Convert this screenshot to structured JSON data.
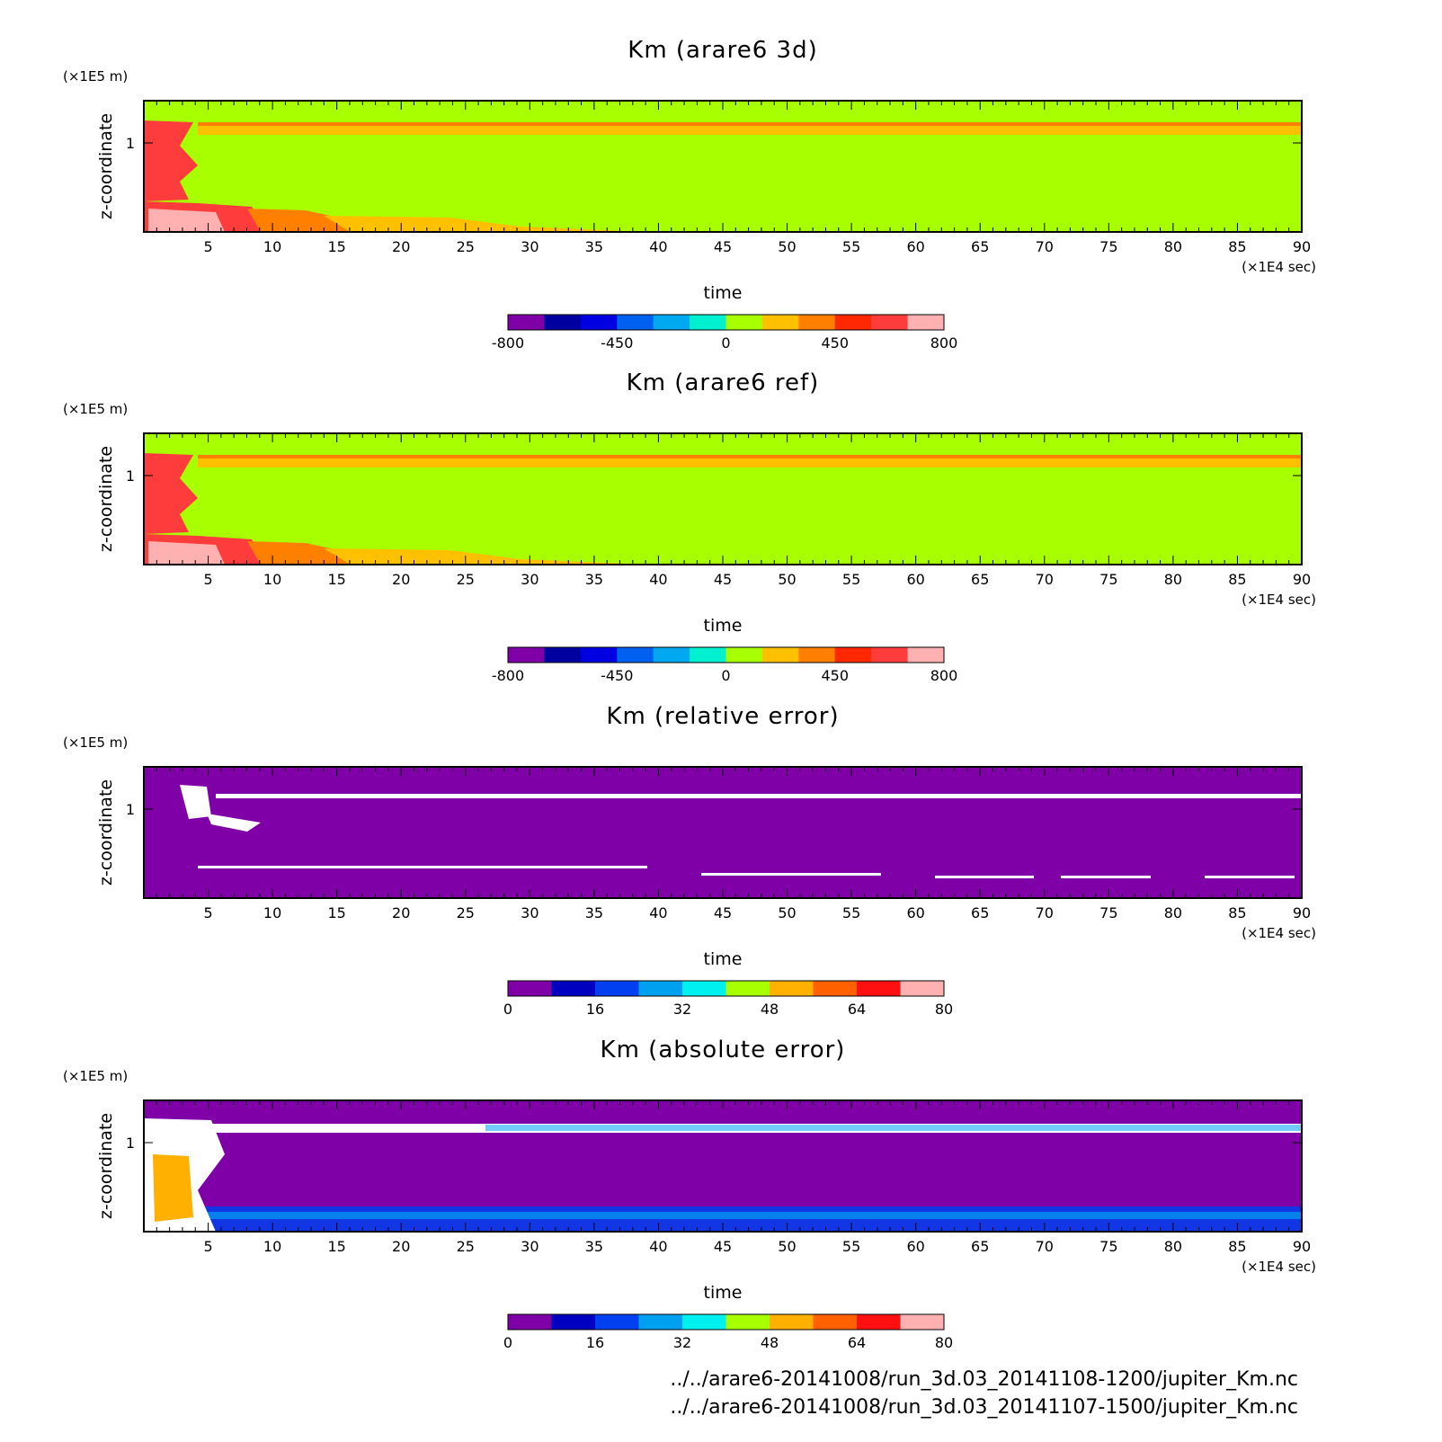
{
  "chart_data": [
    {
      "type": "heatmap",
      "title": "Km (arare6 3d)",
      "xlabel": "time",
      "x_unit": "(×1E4 sec)",
      "y_unit": "(×1E5 m)",
      "ylabel": "z-coordinate",
      "x_ticks": [
        "5",
        "10",
        "15",
        "20",
        "25",
        "30",
        "35",
        "40",
        "45",
        "50",
        "55",
        "60",
        "65",
        "70",
        "75",
        "80",
        "85",
        "90"
      ],
      "y_ticks": [
        "1"
      ],
      "xlim": [
        0,
        90
      ],
      "colorbar": {
        "labels": [
          "-800",
          "-450",
          "0",
          "450",
          "800"
        ],
        "colors": [
          "#8000a8",
          "#0000a0",
          "#0000e0",
          "#0060f0",
          "#00a8f0",
          "#00f0d0",
          "#a8ff00",
          "#ffc000",
          "#ff8000",
          "#ff2800",
          "#ff3c3c",
          "#ffb0b0"
        ]
      }
    },
    {
      "type": "heatmap",
      "title": "Km (arare6 ref)",
      "xlabel": "time",
      "x_unit": "(×1E4 sec)",
      "y_unit": "(×1E5 m)",
      "ylabel": "z-coordinate",
      "x_ticks": [
        "5",
        "10",
        "15",
        "20",
        "25",
        "30",
        "35",
        "40",
        "45",
        "50",
        "55",
        "60",
        "65",
        "70",
        "75",
        "80",
        "85",
        "90"
      ],
      "y_ticks": [
        "1"
      ],
      "xlim": [
        0,
        90
      ],
      "colorbar": {
        "labels": [
          "-800",
          "-450",
          "0",
          "450",
          "800"
        ],
        "colors": [
          "#8000a8",
          "#0000a0",
          "#0000e0",
          "#0060f0",
          "#00a8f0",
          "#00f0d0",
          "#a8ff00",
          "#ffc000",
          "#ff8000",
          "#ff2800",
          "#ff3c3c",
          "#ffb0b0"
        ]
      }
    },
    {
      "type": "heatmap",
      "title": "Km (relative error)",
      "xlabel": "time",
      "x_unit": "(×1E4 sec)",
      "y_unit": "(×1E5 m)",
      "ylabel": "z-coordinate",
      "x_ticks": [
        "5",
        "10",
        "15",
        "20",
        "25",
        "30",
        "35",
        "40",
        "45",
        "50",
        "55",
        "60",
        "65",
        "70",
        "75",
        "80",
        "85",
        "90"
      ],
      "y_ticks": [
        "1"
      ],
      "xlim": [
        0,
        90
      ],
      "colorbar": {
        "labels": [
          "0",
          "16",
          "32",
          "48",
          "64",
          "80"
        ],
        "colors": [
          "#8000a8",
          "#0000c0",
          "#0040f0",
          "#00a0f0",
          "#00f0f0",
          "#a8ff00",
          "#ffb000",
          "#ff6000",
          "#ff1010",
          "#ffb0b0"
        ]
      }
    },
    {
      "type": "heatmap",
      "title": "Km (absolute error)",
      "xlabel": "time",
      "x_unit": "(×1E4 sec)",
      "y_unit": "(×1E5 m)",
      "ylabel": "z-coordinate",
      "x_ticks": [
        "5",
        "10",
        "15",
        "20",
        "25",
        "30",
        "35",
        "40",
        "45",
        "50",
        "55",
        "60",
        "65",
        "70",
        "75",
        "80",
        "85",
        "90"
      ],
      "y_ticks": [
        "1"
      ],
      "xlim": [
        0,
        90
      ],
      "colorbar": {
        "labels": [
          "0",
          "16",
          "32",
          "48",
          "64",
          "80"
        ],
        "colors": [
          "#8000a8",
          "#0000c0",
          "#0040f0",
          "#00a0f0",
          "#00f0f0",
          "#a8ff00",
          "#ffb000",
          "#ff6000",
          "#ff1010",
          "#ffb0b0"
        ]
      }
    }
  ],
  "footer": {
    "line1": "../../arare6-20141008/run_3d.03_20141108-1200/jupiter_Km.nc",
    "line2": "../../arare6-20141008/run_3d.03_20141107-1500/jupiter_Km.nc"
  }
}
